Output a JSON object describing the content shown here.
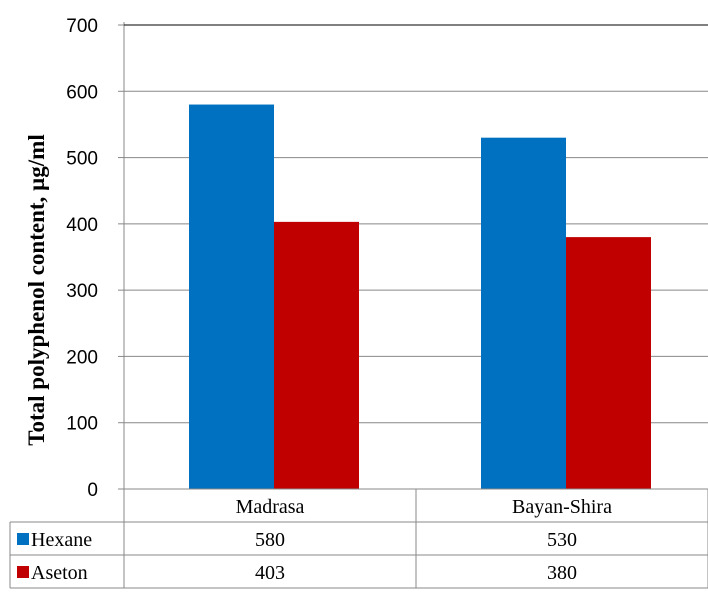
{
  "chart_data": {
    "type": "bar",
    "categories": [
      "Madrasa",
      "Bayan-Shira"
    ],
    "series": [
      {
        "name": "Hexane",
        "values": [
          580,
          530
        ],
        "color": "#0070C0"
      },
      {
        "name": "Aseton",
        "values": [
          403,
          380
        ],
        "color": "#C00000"
      }
    ],
    "ylabel": "Total polyphenol content, µg/ml",
    "ylim": [
      0,
      700
    ],
    "yticks": [
      0,
      100,
      200,
      300,
      400,
      500,
      600,
      700
    ],
    "grid": true,
    "legend": "data-table"
  }
}
